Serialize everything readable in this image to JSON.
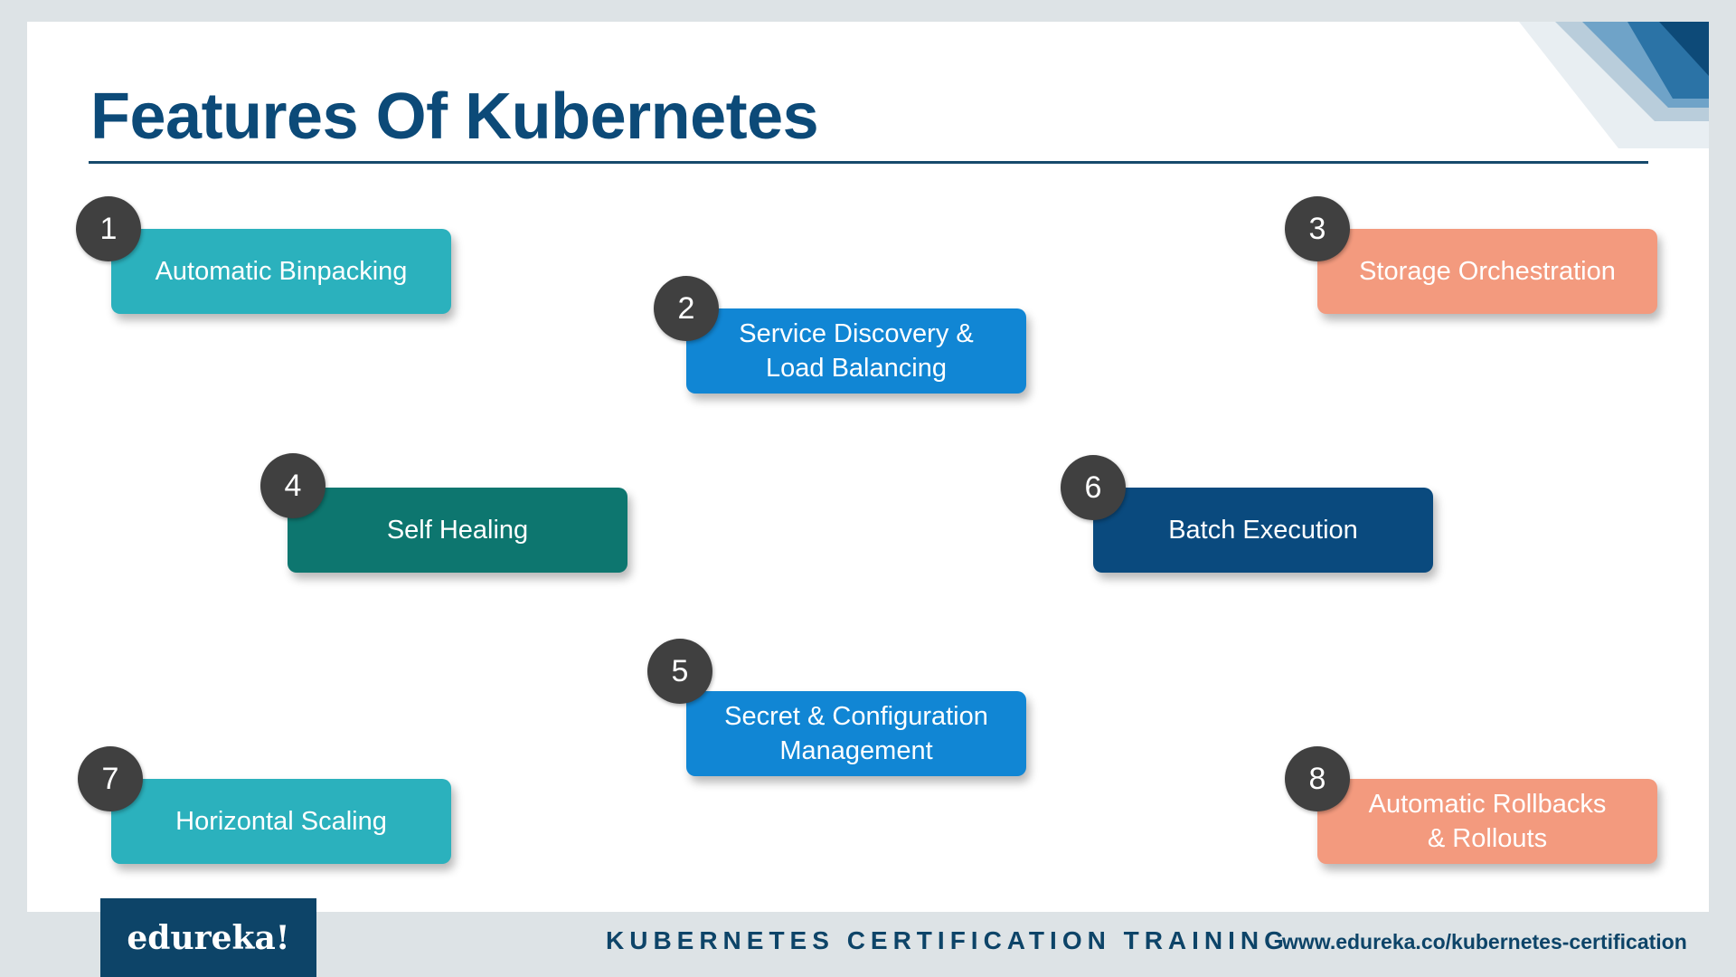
{
  "slide": {
    "title": "Features Of Kubernetes"
  },
  "features": [
    {
      "number": "1",
      "label": "Automatic Binpacking",
      "color": "#2bb1bd"
    },
    {
      "number": "2",
      "label": "Service Discovery & Load Balancing",
      "color": "#1186d4"
    },
    {
      "number": "3",
      "label": "Storage Orchestration",
      "color": "#f39a7e"
    },
    {
      "number": "4",
      "label": "Self Healing",
      "color": "#0d766f"
    },
    {
      "number": "5",
      "label": "Secret & Configuration Management",
      "color": "#1186d4"
    },
    {
      "number": "6",
      "label": "Batch Execution",
      "color": "#0a4a7e"
    },
    {
      "number": "7",
      "label": "Horizontal Scaling",
      "color": "#2bb1bd"
    },
    {
      "number": "8",
      "label": "Automatic Rollbacks & Rollouts",
      "color": "#f39a7e"
    }
  ],
  "footer": {
    "logo": "edureka!",
    "course": "KUBERNETES CERTIFICATION TRAINING",
    "url": "www.edureka.co/kubernetes-certification"
  },
  "colors": {
    "title": "#0c4a78",
    "badge": "#404040",
    "footer_background": "#dde3e6",
    "logo_background": "#0d4468"
  }
}
